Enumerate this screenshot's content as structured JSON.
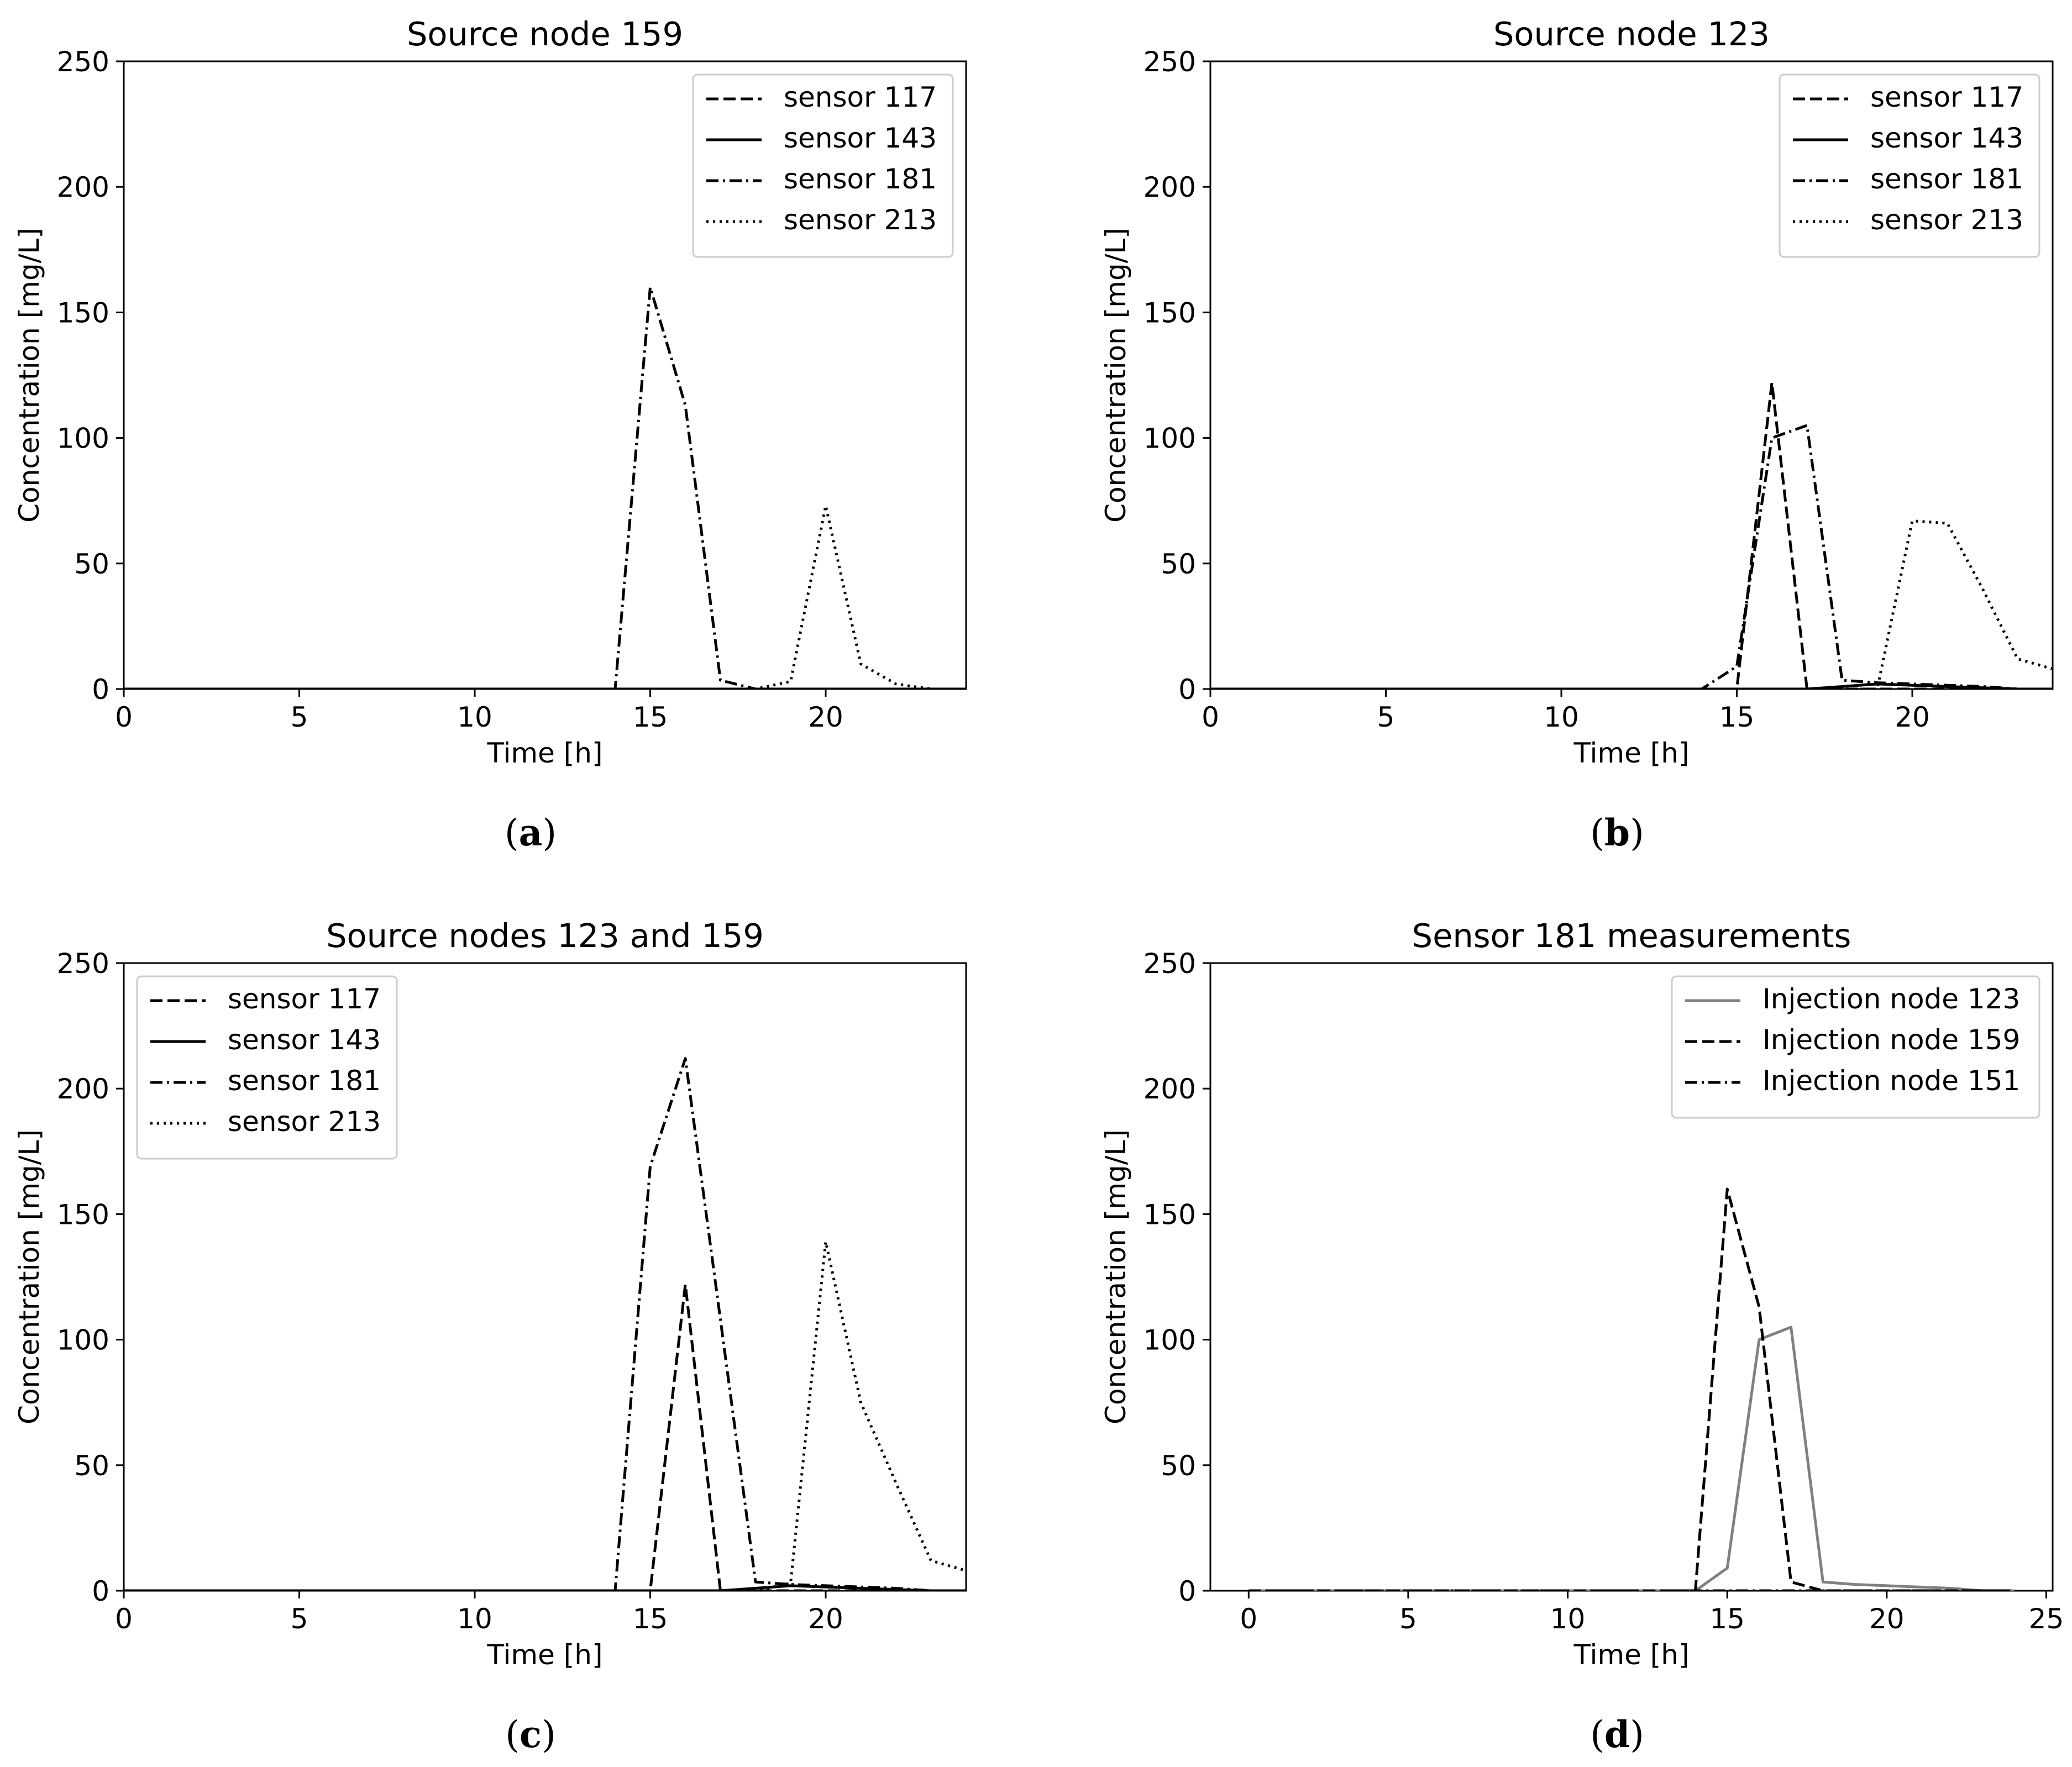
{
  "chart_data": [
    {
      "type": "line",
      "caption": "a",
      "title": "Source node 159",
      "xlabel": "Time [h]",
      "ylabel": "Concentration [mg/L]",
      "xlim": [
        0,
        24
      ],
      "ylim": [
        0,
        250
      ],
      "xticks": [
        0,
        5,
        10,
        15,
        20
      ],
      "yticks": [
        0,
        50,
        100,
        150,
        200,
        250
      ],
      "legend_position": "top-right",
      "series": [
        {
          "name": "sensor 117",
          "style": "dashed",
          "color": "#000000",
          "x": [
            0,
            14,
            15,
            16,
            17,
            18,
            19,
            20,
            21,
            22,
            23,
            24
          ],
          "y": [
            0,
            0,
            0,
            0,
            0,
            0,
            0,
            0,
            0,
            0,
            0,
            0
          ]
        },
        {
          "name": "sensor 143",
          "style": "solid",
          "color": "#000000",
          "x": [
            0,
            14,
            15,
            16,
            17,
            18,
            19,
            20,
            21,
            22,
            23,
            24
          ],
          "y": [
            0,
            0,
            0,
            0,
            0,
            0,
            0,
            0,
            0,
            0,
            0,
            0
          ]
        },
        {
          "name": "sensor 181",
          "style": "dashdot",
          "color": "#000000",
          "x": [
            0,
            14,
            15,
            16,
            17,
            18,
            19,
            20,
            21,
            22,
            23,
            24
          ],
          "y": [
            0,
            0,
            160,
            113,
            3.5,
            0,
            0,
            0,
            0,
            0,
            0,
            0
          ]
        },
        {
          "name": "sensor 213",
          "style": "dotted",
          "color": "#000000",
          "x": [
            0,
            18,
            19,
            20,
            21,
            22,
            23,
            24
          ],
          "y": [
            0,
            0,
            3,
            73,
            10,
            2,
            0,
            0
          ]
        }
      ]
    },
    {
      "type": "line",
      "caption": "b",
      "title": "Source node 123",
      "xlabel": "Time [h]",
      "ylabel": "Concentration [mg/L]",
      "xlim": [
        0,
        24
      ],
      "ylim": [
        0,
        250
      ],
      "xticks": [
        0,
        5,
        10,
        15,
        20
      ],
      "yticks": [
        0,
        50,
        100,
        150,
        200,
        250
      ],
      "legend_position": "top-right",
      "series": [
        {
          "name": "sensor 117",
          "style": "dashed",
          "color": "#000000",
          "x": [
            0,
            14,
            15,
            16,
            17,
            18,
            19,
            20,
            21,
            22,
            23,
            24
          ],
          "y": [
            0,
            0,
            0,
            122,
            0,
            0,
            0,
            0,
            0,
            0,
            0,
            0
          ]
        },
        {
          "name": "sensor 143",
          "style": "solid",
          "color": "#000000",
          "x": [
            0,
            17,
            18,
            19,
            20,
            21,
            22,
            23,
            24
          ],
          "y": [
            0,
            0,
            1,
            2,
            1.5,
            1,
            0.5,
            0,
            0
          ]
        },
        {
          "name": "sensor 181",
          "style": "dashdot",
          "color": "#000000",
          "x": [
            0,
            14,
            15,
            16,
            17,
            18,
            19,
            20,
            21,
            22,
            23,
            24
          ],
          "y": [
            0,
            0,
            9,
            100,
            105,
            3.5,
            2.5,
            2,
            1.5,
            1,
            0,
            0
          ]
        },
        {
          "name": "sensor 213",
          "style": "dotted",
          "color": "#000000",
          "x": [
            0,
            18,
            19,
            20,
            21,
            22,
            23,
            24
          ],
          "y": [
            0,
            0,
            0,
            67,
            66,
            40,
            12,
            8
          ]
        }
      ]
    },
    {
      "type": "line",
      "caption": "c",
      "title": "Source nodes 123 and 159",
      "xlabel": "Time [h]",
      "ylabel": "Concentration [mg/L]",
      "xlim": [
        0,
        24
      ],
      "ylim": [
        0,
        250
      ],
      "xticks": [
        0,
        5,
        10,
        15,
        20
      ],
      "yticks": [
        0,
        50,
        100,
        150,
        200,
        250
      ],
      "legend_position": "top-left",
      "series": [
        {
          "name": "sensor 117",
          "style": "dashed",
          "color": "#000000",
          "x": [
            0,
            14,
            15,
            16,
            17,
            18,
            19,
            20,
            21,
            22,
            23,
            24
          ],
          "y": [
            0,
            0,
            0,
            122,
            0,
            0,
            0,
            0,
            0,
            0,
            0,
            0
          ]
        },
        {
          "name": "sensor 143",
          "style": "solid",
          "color": "#000000",
          "x": [
            0,
            17,
            18,
            19,
            20,
            21,
            22,
            23,
            24
          ],
          "y": [
            0,
            0,
            1,
            2,
            1.5,
            1,
            0.5,
            0,
            0
          ]
        },
        {
          "name": "sensor 181",
          "style": "dashdot",
          "color": "#000000",
          "x": [
            0,
            14,
            15,
            16,
            17,
            18,
            19,
            20,
            21,
            22,
            23,
            24
          ],
          "y": [
            0,
            0,
            169,
            212,
            108,
            3.5,
            2.5,
            2,
            1.5,
            1,
            0,
            0
          ]
        },
        {
          "name": "sensor 213",
          "style": "dotted",
          "color": "#000000",
          "x": [
            0,
            18,
            19,
            20,
            21,
            22,
            23,
            24
          ],
          "y": [
            0,
            0,
            3,
            139,
            75,
            43,
            12,
            8
          ]
        }
      ]
    },
    {
      "type": "line",
      "caption": "d",
      "title": "Sensor 181 measurements",
      "xlabel": "Time [h]",
      "ylabel": "Concentration [mg/L]",
      "xlim": [
        -1.2,
        25.2
      ],
      "ylim": [
        0,
        250
      ],
      "xticks": [
        0,
        5,
        10,
        15,
        20,
        25
      ],
      "yticks": [
        0,
        50,
        100,
        150,
        200,
        250
      ],
      "legend_position": "top-right",
      "series": [
        {
          "name": "Injection node 123",
          "style": "solid",
          "color": "#808080",
          "x": [
            0,
            14,
            15,
            16,
            17,
            18,
            19,
            20,
            21,
            22,
            23,
            24
          ],
          "y": [
            0,
            0,
            9,
            100,
            105,
            3.5,
            2.5,
            2,
            1.5,
            1,
            0,
            0
          ]
        },
        {
          "name": "Injection node 159",
          "style": "dashed",
          "color": "#000000",
          "x": [
            0,
            14,
            15,
            16,
            17,
            18,
            19,
            20,
            21,
            22,
            23,
            24
          ],
          "y": [
            0,
            0,
            160,
            113,
            3.5,
            0,
            0,
            0,
            0,
            0,
            0,
            0
          ]
        },
        {
          "name": "Injection node 151",
          "style": "dashdot",
          "color": "#000000",
          "x": [
            0,
            14,
            15,
            16,
            17,
            18,
            19,
            20,
            21,
            22,
            23,
            24
          ],
          "y": [
            0,
            0,
            0,
            0,
            0,
            0,
            0,
            0,
            0,
            0,
            0,
            0
          ]
        }
      ]
    }
  ]
}
